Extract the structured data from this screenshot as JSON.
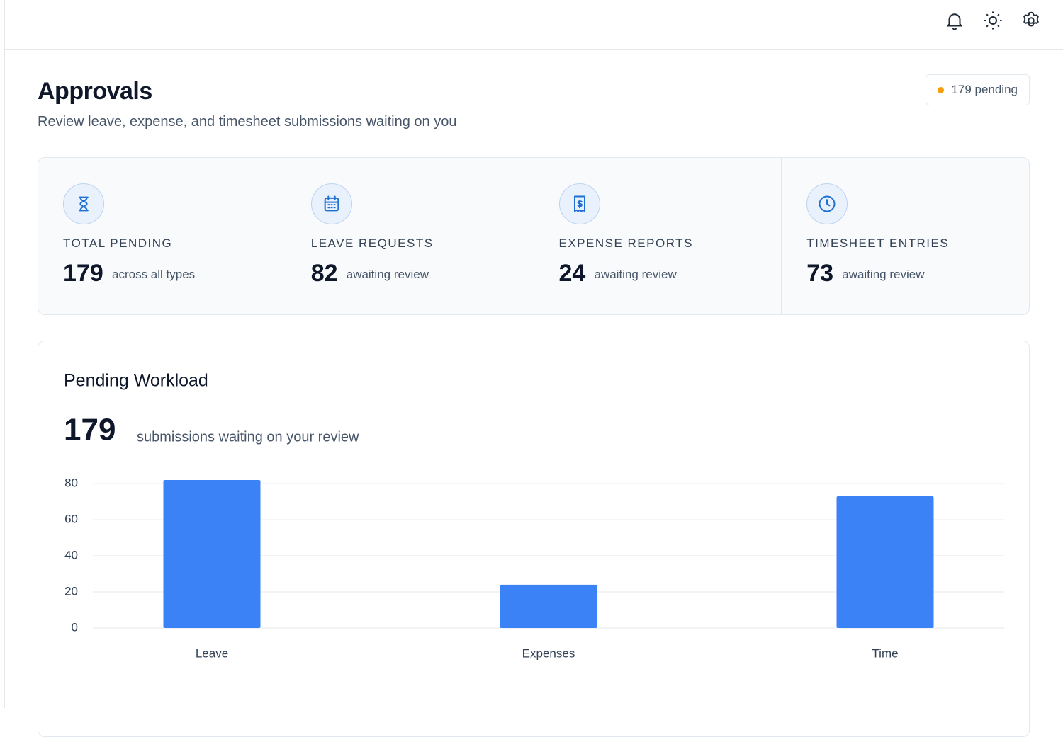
{
  "header": {
    "title": "Approvals",
    "subtitle": "Review leave, expense, and timesheet submissions waiting on you",
    "badge": "179 pending"
  },
  "stats": [
    {
      "label": "TOTAL PENDING",
      "value": 179,
      "note": "across all types"
    },
    {
      "label": "LEAVE REQUESTS",
      "value": 82,
      "note": "awaiting review"
    },
    {
      "label": "EXPENSE REPORTS",
      "value": 24,
      "note": "awaiting review"
    },
    {
      "label": "TIMESHEET ENTRIES",
      "value": 73,
      "note": "awaiting review"
    }
  ],
  "chart_data": {
    "type": "bar",
    "title": "Pending Workload",
    "headline": 179,
    "headline_note": "submissions waiting on your review",
    "categories": [
      "Leave",
      "Expenses",
      "Time"
    ],
    "values": [
      82,
      24,
      73
    ],
    "color": "#3b82f6",
    "ylim": [
      0,
      82
    ],
    "yticks": [
      0,
      20,
      40,
      60,
      80
    ],
    "grid": true
  }
}
